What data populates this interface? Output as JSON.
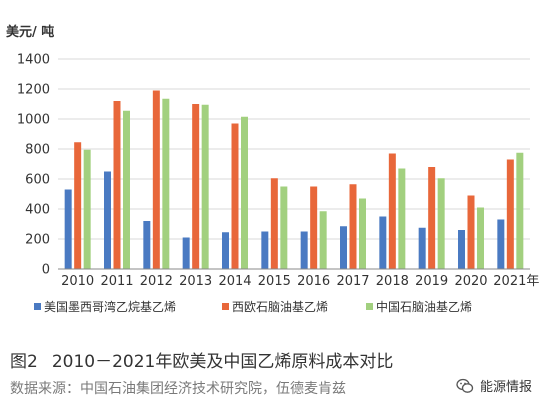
{
  "chart_data": {
    "type": "bar",
    "ylabel": "美元/ 吨",
    "ylim": [
      0,
      1400
    ],
    "yticks": [
      0,
      200,
      400,
      600,
      800,
      1000,
      1200,
      1400
    ],
    "categories": [
      "2010",
      "2011",
      "2012",
      "2013",
      "2014",
      "2015",
      "2016",
      "2017",
      "2018",
      "2019",
      "2020",
      "2021年"
    ],
    "grid": true,
    "legend_position": "bottom",
    "series": [
      {
        "name": "美国墨西哥湾乙烷基乙烯",
        "color": "#4a7ac2",
        "values": [
          530,
          650,
          320,
          210,
          245,
          250,
          250,
          285,
          350,
          275,
          260,
          330
        ]
      },
      {
        "name": "西欧石脑油基乙烯",
        "color": "#e8673a",
        "values": [
          845,
          1120,
          1190,
          1100,
          970,
          605,
          550,
          565,
          770,
          680,
          490,
          730
        ]
      },
      {
        "name": "中国石脑油基乙烯",
        "color": "#a2d07f",
        "values": [
          795,
          1055,
          1135,
          1095,
          1015,
          550,
          385,
          470,
          670,
          605,
          410,
          775
        ]
      }
    ]
  },
  "caption": {
    "number": "图2",
    "title": "2010－2021年欧美及中国乙烯原料成本对比"
  },
  "source": "数据来源：中国石油集团经济技术研究院，伍德麦肯兹",
  "watermark": {
    "text": "能源情报",
    "icon": "wechat-icon"
  }
}
